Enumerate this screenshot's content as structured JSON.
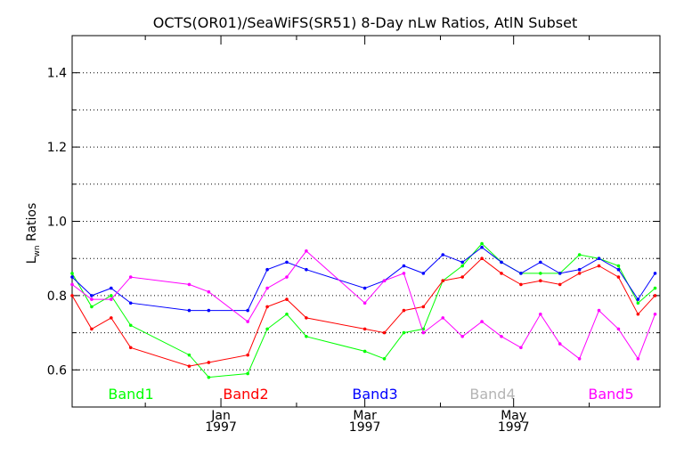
{
  "chart_data": {
    "type": "line",
    "title": "OCTS(OR01)/SeaWiFS(SR51) 8-Day nLw Ratios, AtlN Subset",
    "ylabel_main": "L",
    "ylabel_sub": "wn",
    "ylabel_rest": " Ratios",
    "xlabel": "",
    "ylim": [
      0.5,
      1.5
    ],
    "xlim": [
      "1996-11-01",
      "1997-06-30"
    ],
    "y_ticks": [
      0.6,
      0.8,
      1.0,
      1.2,
      1.4
    ],
    "y_tick_labels": [
      "0.6",
      "0.8",
      "1.0",
      "1.2",
      "1.4"
    ],
    "y_grid": [
      0.6,
      0.7,
      0.8,
      0.9,
      1.0,
      1.1,
      1.2,
      1.3,
      1.4
    ],
    "x_tick_labels": [
      {
        "month": "Jan",
        "year": "1997",
        "date": "1997-01-01"
      },
      {
        "month": "Mar",
        "year": "1997",
        "date": "1997-03-01"
      },
      {
        "month": "May",
        "year": "1997",
        "date": "1997-05-01"
      }
    ],
    "x_minor_ticks": [
      "1996-12-01",
      "1997-02-01",
      "1997-04-01",
      "1997-06-01"
    ],
    "grid": "horizontal dotted",
    "legend_position": "bottom inside plot",
    "series": [
      {
        "name": "Band1",
        "color": "#00ff00",
        "x": [
          "1996-11-01",
          "1996-11-09",
          "1996-11-17",
          "1996-11-25",
          "1996-12-19",
          "1996-12-27",
          "1997-01-12",
          "1997-01-20",
          "1997-01-28",
          "1997-02-05",
          "1997-03-01",
          "1997-03-09",
          "1997-03-17",
          "1997-03-25",
          "1997-04-02",
          "1997-04-10",
          "1997-04-18",
          "1997-04-26",
          "1997-05-04",
          "1997-05-12",
          "1997-05-20",
          "1997-05-28",
          "1997-06-05",
          "1997-06-13",
          "1997-06-21",
          "1997-06-28"
        ],
        "y": [
          0.86,
          0.77,
          0.8,
          0.72,
          0.64,
          0.58,
          0.59,
          0.71,
          0.75,
          0.69,
          0.65,
          0.63,
          0.7,
          0.71,
          0.84,
          0.88,
          0.94,
          0.89,
          0.86,
          0.86,
          0.86,
          0.91,
          0.9,
          0.88,
          0.78,
          0.82
        ]
      },
      {
        "name": "Band2",
        "color": "#ff0000",
        "x": [
          "1996-11-01",
          "1996-11-09",
          "1996-11-17",
          "1996-11-25",
          "1996-12-19",
          "1996-12-27",
          "1997-01-12",
          "1997-01-20",
          "1997-01-28",
          "1997-02-05",
          "1997-03-01",
          "1997-03-09",
          "1997-03-17",
          "1997-03-25",
          "1997-04-02",
          "1997-04-10",
          "1997-04-18",
          "1997-04-26",
          "1997-05-04",
          "1997-05-12",
          "1997-05-20",
          "1997-05-28",
          "1997-06-05",
          "1997-06-13",
          "1997-06-21",
          "1997-06-28"
        ],
        "y": [
          0.8,
          0.71,
          0.74,
          0.66,
          0.61,
          0.62,
          0.64,
          0.77,
          0.79,
          0.74,
          0.71,
          0.7,
          0.76,
          0.77,
          0.84,
          0.85,
          0.9,
          0.86,
          0.83,
          0.84,
          0.83,
          0.86,
          0.88,
          0.85,
          0.75,
          0.8
        ]
      },
      {
        "name": "Band3",
        "color": "#0000ff",
        "x": [
          "1996-11-01",
          "1996-11-09",
          "1996-11-17",
          "1996-11-25",
          "1996-12-19",
          "1996-12-27",
          "1997-01-12",
          "1997-01-20",
          "1997-01-28",
          "1997-02-05",
          "1997-03-01",
          "1997-03-09",
          "1997-03-17",
          "1997-03-25",
          "1997-04-02",
          "1997-04-10",
          "1997-04-18",
          "1997-04-26",
          "1997-05-04",
          "1997-05-12",
          "1997-05-20",
          "1997-05-28",
          "1997-06-05",
          "1997-06-13",
          "1997-06-21",
          "1997-06-28"
        ],
        "y": [
          0.85,
          0.8,
          0.82,
          0.78,
          0.76,
          0.76,
          0.76,
          0.87,
          0.89,
          0.87,
          0.82,
          0.84,
          0.88,
          0.86,
          0.91,
          0.89,
          0.93,
          0.89,
          0.86,
          0.89,
          0.86,
          0.87,
          0.9,
          0.87,
          0.79,
          0.86
        ]
      },
      {
        "name": "Band4",
        "color": "#b4b4b4",
        "x": [],
        "y": []
      },
      {
        "name": "Band5",
        "color": "#ff00ff",
        "x": [
          "1996-11-01",
          "1996-11-09",
          "1996-11-17",
          "1996-11-25",
          "1996-12-19",
          "1996-12-27",
          "1997-01-12",
          "1997-01-20",
          "1997-01-28",
          "1997-02-05",
          "1997-03-01",
          "1997-03-09",
          "1997-03-17",
          "1997-03-25",
          "1997-04-02",
          "1997-04-10",
          "1997-04-18",
          "1997-04-26",
          "1997-05-04",
          "1997-05-12",
          "1997-05-20",
          "1997-05-28",
          "1997-06-05",
          "1997-06-13",
          "1997-06-21",
          "1997-06-28"
        ],
        "y": [
          0.83,
          0.79,
          0.79,
          0.85,
          0.83,
          0.81,
          0.73,
          0.82,
          0.85,
          0.92,
          0.78,
          0.84,
          0.86,
          0.7,
          0.74,
          0.69,
          0.73,
          0.69,
          0.66,
          0.75,
          0.67,
          0.63,
          0.76,
          0.71,
          0.63,
          0.75
        ]
      }
    ]
  }
}
